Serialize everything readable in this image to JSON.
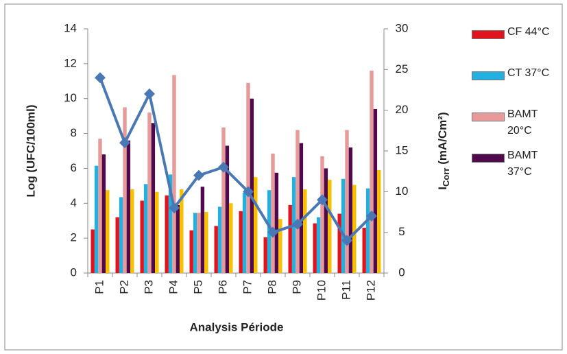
{
  "chart_data": {
    "type": "bar",
    "xlabel": "Analysis Période",
    "ylabel": "Log (UFC/100ml)",
    "y2label": [
      "I",
      "Corr",
      " (mA/Cm²)"
    ],
    "categories": [
      "P1",
      "P2",
      "P3",
      "P4",
      "P5",
      "P6",
      "P7",
      "P8",
      "P9",
      "P10",
      "P11",
      "P12"
    ],
    "series": [
      {
        "name": "CF 44°C",
        "color": "#e0141c",
        "values": [
          2.5,
          3.2,
          4.15,
          4.45,
          2.45,
          2.7,
          3.55,
          2.05,
          3.9,
          2.85,
          3.4,
          2.6
        ]
      },
      {
        "name": "CT 37°C",
        "color": "#21b0e0",
        "values": [
          6.15,
          4.35,
          5.1,
          5.65,
          3.45,
          3.8,
          4.6,
          4.75,
          5.5,
          3.2,
          5.4,
          4.85
        ]
      },
      {
        "name": "BAMT 20°C",
        "color": "#e8999a",
        "values": [
          7.7,
          9.5,
          9.2,
          11.35,
          3.45,
          8.35,
          10.9,
          6.85,
          8.2,
          6.7,
          8.2,
          11.6
        ]
      },
      {
        "name": "BAMT 37°C",
        "color": "#4e0a4a",
        "values": [
          6.8,
          7.6,
          8.6,
          3.9,
          4.95,
          7.3,
          10.0,
          5.75,
          7.45,
          6.0,
          7.2,
          9.4
        ]
      },
      {
        "color": "#f8c000",
        "values": [
          4.75,
          4.8,
          4.65,
          4.8,
          3.5,
          4.0,
          5.5,
          3.1,
          4.8,
          5.35,
          5.05,
          5.9
        ]
      },
      {
        "type": "line",
        "axis": "y2",
        "color": "#4a78b4",
        "values": [
          24,
          16,
          22,
          8,
          12,
          13,
          10,
          5,
          6,
          9,
          4,
          7
        ]
      }
    ],
    "ylim": [
      0,
      14
    ],
    "yticks": [
      0,
      2,
      4,
      6,
      8,
      10,
      12,
      14
    ],
    "y2lim": [
      0,
      30
    ],
    "y2ticks": [
      0,
      5,
      10,
      15,
      20,
      25,
      30
    ],
    "legend": "right"
  }
}
